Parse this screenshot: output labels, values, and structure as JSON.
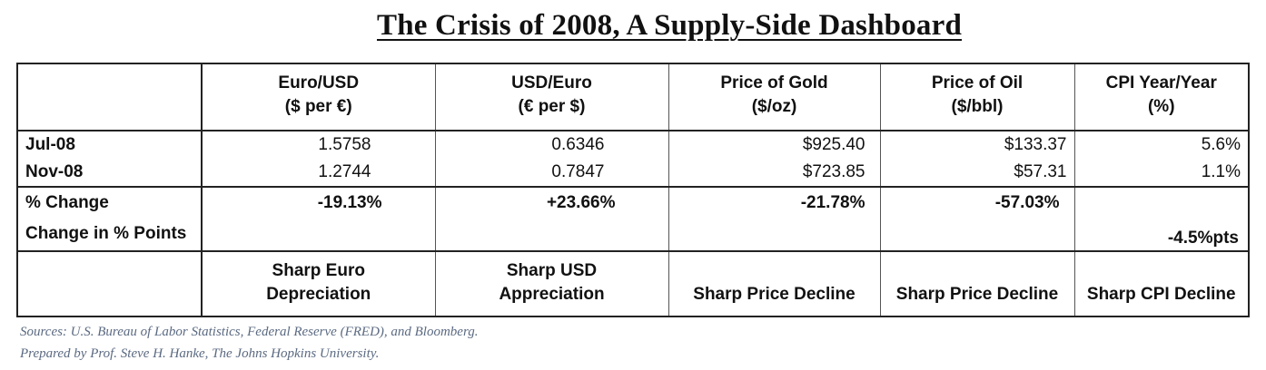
{
  "title": "The Crisis of 2008, A Supply-Side Dashboard",
  "chart_data": {
    "type": "table",
    "title": "The Crisis of 2008, A Supply-Side Dashboard",
    "columns": [
      {
        "label": "Euro/USD",
        "unit": "($ per €)"
      },
      {
        "label": "USD/Euro",
        "unit": "(€ per $)"
      },
      {
        "label": "Price of Gold",
        "unit": "($/oz)"
      },
      {
        "label": "Price of Oil",
        "unit": "($/bbl)"
      },
      {
        "label": "CPI Year/Year",
        "unit": "(%)"
      }
    ],
    "rows": [
      {
        "label": "Jul-08",
        "values": [
          "1.5758",
          "0.6346",
          "$925.40",
          "$133.37",
          "5.6%"
        ]
      },
      {
        "label": "Nov-08",
        "values": [
          "1.2744",
          "0.7847",
          "$723.85",
          "$57.31",
          "1.1%"
        ]
      }
    ],
    "change_label": "% Change",
    "change_values": [
      "-19.13%",
      "+23.66%",
      "-21.78%",
      "-57.03%",
      ""
    ],
    "points_label": "Change in % Points",
    "points_values": [
      "",
      "",
      "",
      "",
      "-4.5%pts"
    ],
    "conclusions": [
      [
        "Sharp Euro",
        "Depreciation"
      ],
      [
        "Sharp USD",
        "Appreciation"
      ],
      [
        "",
        "Sharp Price Decline"
      ],
      [
        "",
        "Sharp Price Decline"
      ],
      [
        "",
        "Sharp CPI Decline"
      ]
    ]
  },
  "sources": {
    "line1": "Sources:  U.S. Bureau of Labor Statistics, Federal Reserve (FRED), and Bloomberg.",
    "line2": "Prepared by Prof. Steve H. Hanke, The Johns Hopkins University."
  }
}
